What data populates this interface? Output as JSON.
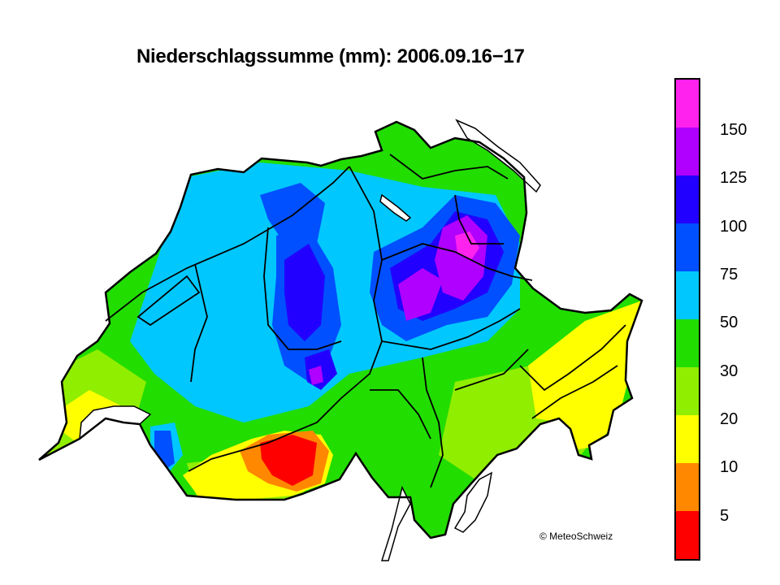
{
  "title": "Niederschlagssumme (mm): 2006.09.16−17",
  "credit": "© MeteoSchweiz",
  "legend": {
    "labels": [
      "150",
      "125",
      "100",
      "75",
      "50",
      "30",
      "20",
      "10",
      "5"
    ],
    "colors": [
      "#ff22ee",
      "#b000ff",
      "#2200ff",
      "#0050ff",
      "#00c8ff",
      "#22dd00",
      "#90ee00",
      "#ffff00",
      "#ff8800",
      "#ff0000"
    ]
  },
  "map": {
    "region": "Switzerland",
    "variable": "precipitation total (mm)",
    "background_color": "#22dd00",
    "lake_color": "#ffffff",
    "border_color": "#000000"
  }
}
